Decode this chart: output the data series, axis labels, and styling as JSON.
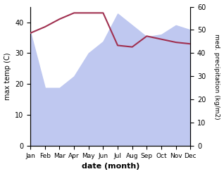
{
  "months": [
    "Jan",
    "Feb",
    "Mar",
    "Apr",
    "May",
    "Jun",
    "Jul",
    "Aug",
    "Sep",
    "Oct",
    "Nov",
    "Dec"
  ],
  "month_indices": [
    1,
    2,
    3,
    4,
    5,
    6,
    7,
    8,
    9,
    10,
    11,
    12
  ],
  "temp": [
    36.5,
    38.5,
    41.0,
    43.0,
    43.0,
    43.0,
    32.5,
    32.0,
    35.5,
    34.5,
    33.5,
    33.0
  ],
  "precip": [
    49,
    25,
    25,
    30,
    40,
    45,
    57,
    52,
    47,
    48,
    52,
    50
  ],
  "temp_color": "#a03050",
  "precip_fill_color": "#bfc8f0",
  "ylabel_left": "max temp (C)",
  "ylabel_right": "med. precipitation (kg/m2)",
  "xlabel": "date (month)",
  "ylim_left": [
    0,
    45
  ],
  "ylim_right": [
    0,
    60
  ],
  "yticks_left": [
    0,
    10,
    20,
    30,
    40
  ],
  "yticks_right": [
    0,
    10,
    20,
    30,
    40,
    50,
    60
  ],
  "fig_width": 3.18,
  "fig_height": 2.47,
  "dpi": 100
}
